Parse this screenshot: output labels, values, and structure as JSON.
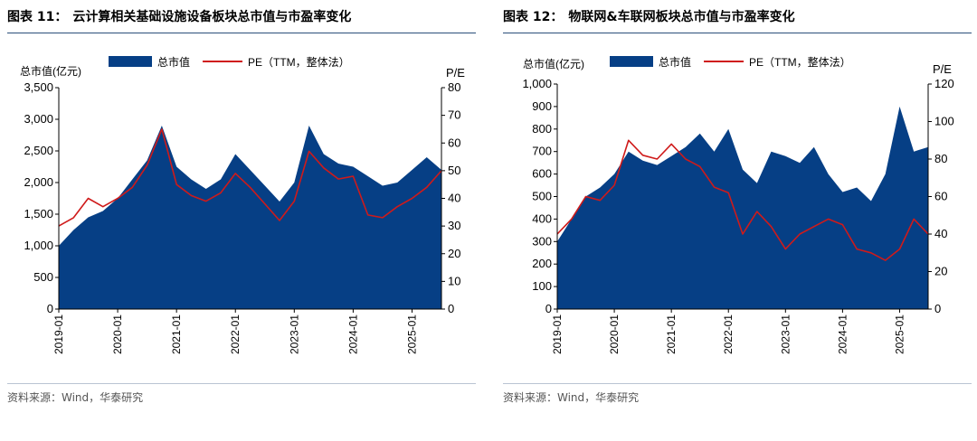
{
  "colors": {
    "area": "#063f85",
    "pe_line": "#cf1a1a",
    "rule": "#2a4f7a",
    "axis": "#000000",
    "source_text": "#555555"
  },
  "charts": [
    {
      "figure_label": "图表 11：",
      "title": "云计算相关基础设施设备板块总市值与市盈率变化",
      "source": "资料来源：Wind，华泰研究"
    },
    {
      "figure_label": "图表 12：",
      "title": "物联网&车联网板块总市值与市盈率变化",
      "source": "资料来源：Wind，华泰研究"
    }
  ],
  "chart_data": [
    {
      "type": "area",
      "title": "云计算相关基础设施设备板块总市值与市盈率变化",
      "legend_position": "top",
      "left_axis_label": "总市值(亿元)",
      "right_axis_label": "P/E",
      "ylim": [
        0,
        3500
      ],
      "y_ticks": [
        "0",
        "500",
        "1,000",
        "1,500",
        "2,000",
        "2,500",
        "3,000",
        "3,500"
      ],
      "ylim_right": [
        0,
        80
      ],
      "y_right_ticks": [
        "0",
        "10",
        "20",
        "30",
        "40",
        "50",
        "60",
        "70",
        "80"
      ],
      "x_ticks": [
        "2019-01",
        "2020-01",
        "2021-01",
        "2022-01",
        "2023-01",
        "2024-01",
        "2025-01"
      ],
      "x": [
        "2019-01",
        "2019-04",
        "2019-07",
        "2019-10",
        "2020-01",
        "2020-04",
        "2020-07",
        "2020-10",
        "2021-01",
        "2021-04",
        "2021-07",
        "2021-10",
        "2022-01",
        "2022-04",
        "2022-07",
        "2022-10",
        "2023-01",
        "2023-04",
        "2023-07",
        "2023-10",
        "2024-01",
        "2024-04",
        "2024-07",
        "2024-10",
        "2025-01",
        "2025-04",
        "2025-07"
      ],
      "series": [
        {
          "name": "总市值",
          "kind": "area",
          "axis": "left",
          "values": [
            1000,
            1250,
            1450,
            1550,
            1750,
            2050,
            2350,
            2900,
            2250,
            2050,
            1900,
            2050,
            2450,
            2200,
            1950,
            1700,
            2000,
            2900,
            2450,
            2300,
            2250,
            2100,
            1950,
            2000,
            2200,
            2400,
            2200
          ]
        },
        {
          "name": "PE（TTM，整体法）",
          "kind": "line",
          "axis": "right",
          "values": [
            30,
            33,
            40,
            37,
            40,
            44,
            52,
            65,
            45,
            41,
            39,
            42,
            49,
            44,
            38,
            32,
            39,
            57,
            51,
            47,
            48,
            34,
            33,
            37,
            40,
            44,
            50
          ]
        }
      ]
    },
    {
      "type": "area",
      "title": "物联网&车联网板块总市值与市盈率变化",
      "legend_position": "top",
      "left_axis_label": "总市值(亿元)",
      "right_axis_label": "P/E",
      "ylim": [
        0,
        1000
      ],
      "y_ticks": [
        "0",
        "100",
        "200",
        "300",
        "400",
        "500",
        "600",
        "700",
        "800",
        "900",
        "1,000"
      ],
      "ylim_right": [
        0,
        120
      ],
      "y_right_ticks": [
        "0",
        "20",
        "40",
        "60",
        "80",
        "100",
        "120"
      ],
      "x_ticks": [
        "2019-01",
        "2020-01",
        "2021-01",
        "2022-01",
        "2023-01",
        "2024-01",
        "2025-01"
      ],
      "x": [
        "2019-01",
        "2019-04",
        "2019-07",
        "2019-10",
        "2020-01",
        "2020-04",
        "2020-07",
        "2020-10",
        "2021-01",
        "2021-04",
        "2021-07",
        "2021-10",
        "2022-01",
        "2022-04",
        "2022-07",
        "2022-10",
        "2023-01",
        "2023-04",
        "2023-07",
        "2023-10",
        "2024-01",
        "2024-04",
        "2024-07",
        "2024-10",
        "2025-01",
        "2025-04",
        "2025-07"
      ],
      "series": [
        {
          "name": "总市值",
          "kind": "area",
          "axis": "left",
          "values": [
            300,
            400,
            500,
            540,
            600,
            700,
            660,
            640,
            680,
            720,
            780,
            700,
            800,
            620,
            560,
            700,
            680,
            650,
            720,
            600,
            520,
            540,
            480,
            600,
            900,
            700,
            720
          ]
        },
        {
          "name": "PE（TTM，整体法）",
          "kind": "line",
          "axis": "right",
          "values": [
            40,
            48,
            60,
            58,
            66,
            90,
            82,
            80,
            88,
            80,
            76,
            65,
            62,
            40,
            52,
            44,
            32,
            40,
            44,
            48,
            45,
            32,
            30,
            26,
            32,
            48,
            40
          ]
        }
      ]
    }
  ]
}
